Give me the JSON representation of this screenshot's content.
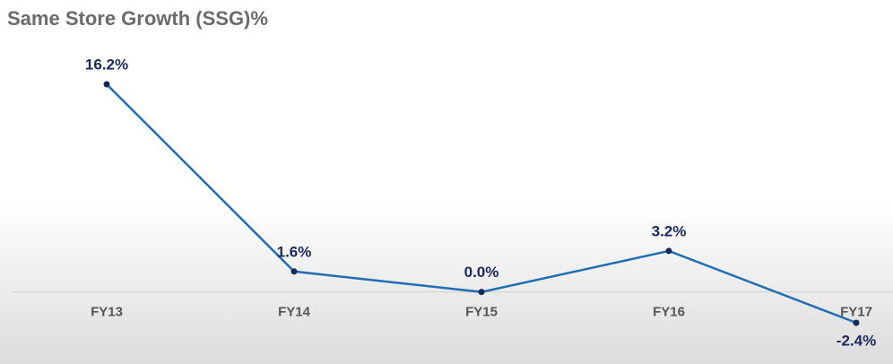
{
  "chart_data": {
    "type": "line",
    "title": "Same Store Growth (SSG)%",
    "categories": [
      "FY13",
      "FY14",
      "FY15",
      "FY16",
      "FY17"
    ],
    "values": [
      16.2,
      1.6,
      0.0,
      3.2,
      -2.4
    ],
    "value_labels": [
      "16.2%",
      "1.6%",
      "0.0%",
      "3.2%",
      "-2.4%"
    ],
    "color": "#1f6db3"
  }
}
